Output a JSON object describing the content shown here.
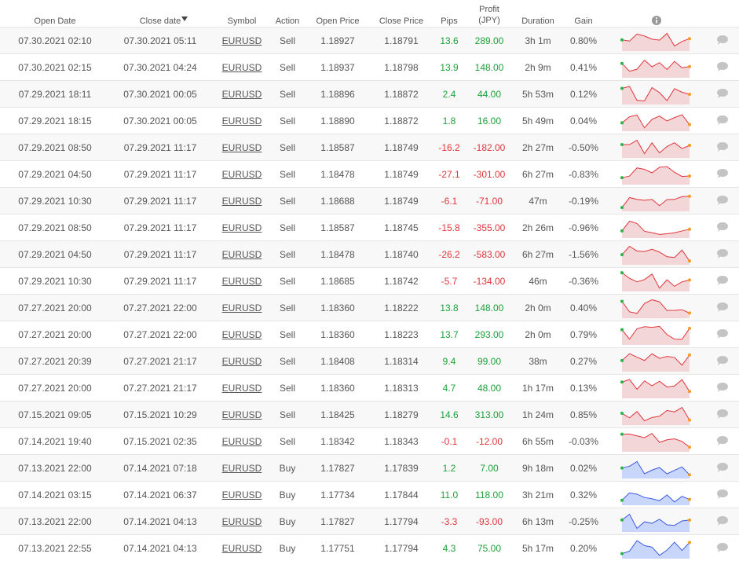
{
  "table": {
    "headers": [
      "Open Date",
      "Close date",
      "Symbol",
      "Action",
      "Open Price",
      "Close Price",
      "Pips",
      "Profit (JPY)",
      "Duration",
      "Gain"
    ],
    "rows": [
      [
        "07.30.2021 02:10",
        "07.30.2021 05:11",
        "EURUSD",
        "Sell",
        "1.18927",
        "1.18791",
        "13.6",
        "289.00",
        "3h 1m",
        "0.80%"
      ],
      [
        "07.30.2021 02:15",
        "07.30.2021 04:24",
        "EURUSD",
        "Sell",
        "1.18937",
        "1.18798",
        "13.9",
        "148.00",
        "2h 9m",
        "0.41%"
      ],
      [
        "07.29.2021 18:11",
        "07.30.2021 00:05",
        "EURUSD",
        "Sell",
        "1.18896",
        "1.18872",
        "2.4",
        "44.00",
        "5h 53m",
        "0.12%"
      ],
      [
        "07.29.2021 18:15",
        "07.30.2021 00:05",
        "EURUSD",
        "Sell",
        "1.18890",
        "1.18872",
        "1.8",
        "16.00",
        "5h 49m",
        "0.04%"
      ],
      [
        "07.29.2021 08:50",
        "07.29.2021 11:17",
        "EURUSD",
        "Sell",
        "1.18587",
        "1.18749",
        "-16.2",
        "-182.00",
        "2h 27m",
        "-0.50%"
      ],
      [
        "07.29.2021 04:50",
        "07.29.2021 11:17",
        "EURUSD",
        "Sell",
        "1.18478",
        "1.18749",
        "-27.1",
        "-301.00",
        "6h 27m",
        "-0.83%"
      ],
      [
        "07.29.2021 10:30",
        "07.29.2021 11:17",
        "EURUSD",
        "Sell",
        "1.18688",
        "1.18749",
        "-6.1",
        "-71.00",
        "47m",
        "-0.19%"
      ],
      [
        "07.29.2021 08:50",
        "07.29.2021 11:17",
        "EURUSD",
        "Sell",
        "1.18587",
        "1.18745",
        "-15.8",
        "-355.00",
        "2h 26m",
        "-0.96%"
      ],
      [
        "07.29.2021 04:50",
        "07.29.2021 11:17",
        "EURUSD",
        "Sell",
        "1.18478",
        "1.18740",
        "-26.2",
        "-583.00",
        "6h 27m",
        "-1.56%"
      ],
      [
        "07.29.2021 10:30",
        "07.29.2021 11:17",
        "EURUSD",
        "Sell",
        "1.18685",
        "1.18742",
        "-5.7",
        "-134.00",
        "46m",
        "-0.36%"
      ],
      [
        "07.27.2021 20:00",
        "07.27.2021 22:00",
        "EURUSD",
        "Sell",
        "1.18360",
        "1.18222",
        "13.8",
        "148.00",
        "2h 0m",
        "0.40%"
      ],
      [
        "07.27.2021 20:00",
        "07.27.2021 22:00",
        "EURUSD",
        "Sell",
        "1.18360",
        "1.18223",
        "13.7",
        "293.00",
        "2h 0m",
        "0.79%"
      ],
      [
        "07.27.2021 20:39",
        "07.27.2021 21:17",
        "EURUSD",
        "Sell",
        "1.18408",
        "1.18314",
        "9.4",
        "99.00",
        "38m",
        "0.27%"
      ],
      [
        "07.27.2021 20:00",
        "07.27.2021 21:17",
        "EURUSD",
        "Sell",
        "1.18360",
        "1.18313",
        "4.7",
        "48.00",
        "1h 17m",
        "0.13%"
      ],
      [
        "07.15.2021 09:05",
        "07.15.2021 10:29",
        "EURUSD",
        "Sell",
        "1.18425",
        "1.18279",
        "14.6",
        "313.00",
        "1h 24m",
        "0.85%"
      ],
      [
        "07.14.2021 19:40",
        "07.15.2021 02:35",
        "EURUSD",
        "Sell",
        "1.18342",
        "1.18343",
        "-0.1",
        "-12.00",
        "6h 55m",
        "-0.03%"
      ],
      [
        "07.13.2021 22:00",
        "07.14.2021 07:18",
        "EURUSD",
        "Buy",
        "1.17827",
        "1.17839",
        "1.2",
        "7.00",
        "9h 18m",
        "0.02%"
      ],
      [
        "07.14.2021 03:15",
        "07.14.2021 06:37",
        "EURUSD",
        "Buy",
        "1.17734",
        "1.17844",
        "11.0",
        "118.00",
        "3h 21m",
        "0.32%"
      ],
      [
        "07.13.2021 22:00",
        "07.14.2021 04:13",
        "EURUSD",
        "Buy",
        "1.17827",
        "1.17794",
        "-3.3",
        "-93.00",
        "6h 13m",
        "-0.25%"
      ],
      [
        "07.13.2021 22:55",
        "07.14.2021 04:13",
        "EURUSD",
        "Buy",
        "1.17751",
        "1.17794",
        "4.3",
        "75.00",
        "5h 17m",
        "0.20%"
      ]
    ]
  }
}
